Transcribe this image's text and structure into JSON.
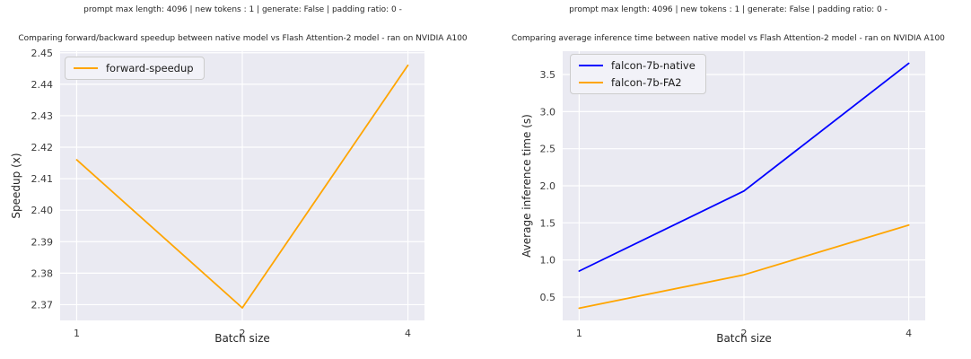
{
  "colors": {
    "figure_bg": "#ffffff",
    "plot_bg": "#eaeaf2",
    "grid": "#ffffff",
    "title_text": "#262626",
    "tick_text": "#3b3b3b",
    "legend_bg": "#f2f2f8",
    "legend_border": "#cccccc",
    "orange": "#ffa500",
    "blue": "#0000ff"
  },
  "chart_data": [
    {
      "type": "line",
      "suptitle": "prompt max length: 4096 | new tokens : 1 | generate: False | padding ratio: 0 -",
      "title": "Comparing forward/backward speedup between native model vs Flash Attention-2 model - ran on NVIDIA A100",
      "xlabel": "Batch size",
      "ylabel": "Speedup (x)",
      "x_scale": "log2",
      "x": [
        1,
        2,
        4
      ],
      "x_tick_labels": [
        "1",
        "2",
        "4"
      ],
      "ylim": [
        2.365,
        2.4505
      ],
      "y_ticks": [
        2.37,
        2.38,
        2.39,
        2.4,
        2.41,
        2.42,
        2.43,
        2.44,
        2.45
      ],
      "y_tick_labels": [
        "2.37",
        "2.38",
        "2.39",
        "2.40",
        "2.41",
        "2.42",
        "2.43",
        "2.44",
        "2.45"
      ],
      "grid": true,
      "legend_position": "upper left",
      "series": [
        {
          "name": "forward-speedup",
          "color_key": "orange",
          "values": [
            2.416,
            2.369,
            2.446
          ]
        }
      ]
    },
    {
      "type": "line",
      "suptitle": "prompt max length: 4096 | new tokens : 1 | generate: False | padding ratio: 0 -",
      "title": "Comparing average inference time between native model vs Flash Attention-2 model - ran on NVIDIA A100",
      "xlabel": "Batch size",
      "ylabel": "Average inference time (s)",
      "x_scale": "log2",
      "x": [
        1,
        2,
        4
      ],
      "x_tick_labels": [
        "1",
        "2",
        "4"
      ],
      "ylim": [
        0.185,
        3.815
      ],
      "y_ticks": [
        0.5,
        1.0,
        1.5,
        2.0,
        2.5,
        3.0,
        3.5
      ],
      "y_tick_labels": [
        "0.5",
        "1.0",
        "1.5",
        "2.0",
        "2.5",
        "3.0",
        "3.5"
      ],
      "grid": true,
      "legend_position": "upper left",
      "series": [
        {
          "name": "falcon-7b-native",
          "color_key": "blue",
          "values": [
            0.85,
            1.93,
            3.65
          ]
        },
        {
          "name": "falcon-7b-FA2",
          "color_key": "orange",
          "values": [
            0.35,
            0.8,
            1.47
          ]
        }
      ]
    }
  ]
}
